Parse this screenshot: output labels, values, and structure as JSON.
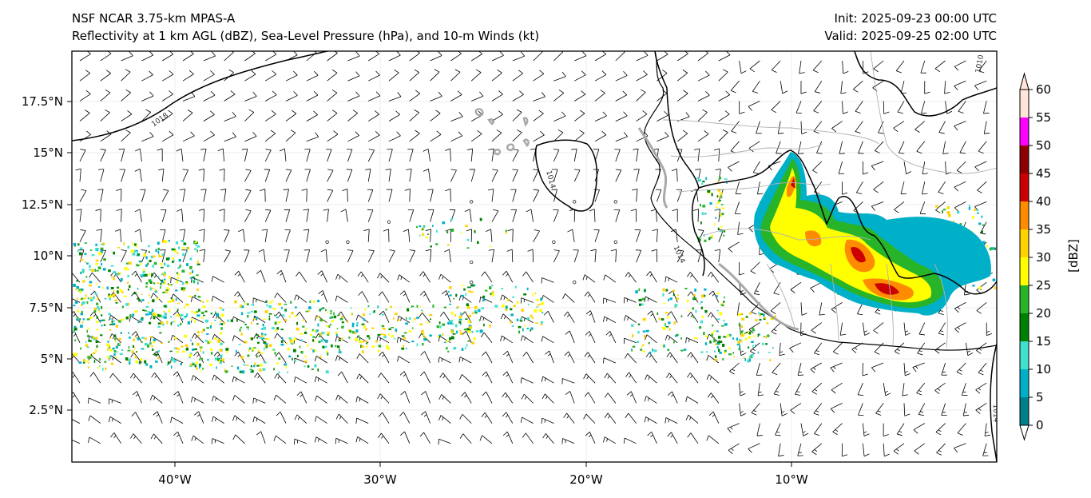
{
  "header": {
    "model": "NSF NCAR 3.75-km MPAS-A",
    "fields": "Reflectivity at 1 km AGL (dBZ), Sea-Level Pressure (hPa), and 10-m Winds (kt)",
    "init": "Init: 2025-09-23 00:00 UTC",
    "valid": "Valid: 2025-09-25 02:00 UTC"
  },
  "map": {
    "lon_ticks": [
      "40°W",
      "30°W",
      "20°W",
      "10°W"
    ],
    "lat_ticks": [
      "17.5°N",
      "15°N",
      "12.5°N",
      "10°N",
      "7.5°N",
      "5°N",
      "2.5°N"
    ],
    "isobar_labels": [
      "1018",
      "1014",
      "1014",
      "1010",
      "1014"
    ],
    "coastline_color": "#000000",
    "border_color": "#b0b0b0",
    "island_color": "#a9a9a9"
  },
  "colorbar": {
    "label": "[dBZ]",
    "ticks": [
      "0",
      "5",
      "10",
      "15",
      "20",
      "25",
      "30",
      "35",
      "40",
      "45",
      "50",
      "55",
      "60"
    ],
    "colors": [
      "#ffffff",
      "#00808a",
      "#00b0c8",
      "#40e0d0",
      "#008000",
      "#28b428",
      "#ffff00",
      "#ffd200",
      "#ff8c00",
      "#cc0000",
      "#8b0000",
      "#ff00ff",
      "#ffe4d8"
    ]
  }
}
